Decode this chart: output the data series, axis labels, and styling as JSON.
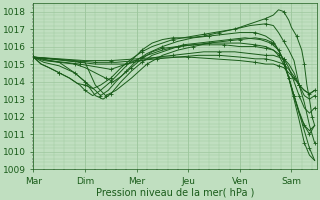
{
  "xlabel": "Pression niveau de la mer( hPa )",
  "ylim": [
    1009,
    1018.5
  ],
  "yticks": [
    1009,
    1010,
    1011,
    1012,
    1013,
    1014,
    1015,
    1016,
    1017,
    1018
  ],
  "day_labels": [
    "Mar",
    "Dim",
    "Mer",
    "Jeu",
    "Ven",
    "Sam"
  ],
  "day_positions": [
    0,
    1,
    2,
    3,
    4,
    5
  ],
  "xlim": [
    0,
    5.5
  ],
  "background_color": "#c0dfc0",
  "grid_color": "#9ec89e",
  "line_color": "#1a5c1a",
  "fig_bg": "#c0dfc0",
  "minor_per_major": 5,
  "lines": [
    [
      0.0,
      1015.4,
      0.15,
      1015.0,
      0.3,
      1014.8,
      0.5,
      1014.5,
      0.7,
      1014.2,
      0.85,
      1013.9,
      1.0,
      1013.8,
      1.15,
      1013.6,
      1.3,
      1013.8,
      1.5,
      1014.2,
      1.7,
      1014.8,
      1.9,
      1015.3,
      2.1,
      1015.7,
      2.3,
      1016.0,
      2.5,
      1016.2,
      2.7,
      1016.4,
      2.9,
      1016.5,
      3.1,
      1016.6,
      3.3,
      1016.7,
      3.5,
      1016.8,
      3.7,
      1016.9,
      3.9,
      1017.0,
      4.1,
      1017.2,
      4.3,
      1017.4,
      4.5,
      1017.6,
      4.65,
      1017.8,
      4.75,
      1018.1,
      4.85,
      1018.0,
      4.95,
      1017.5,
      5.0,
      1017.1,
      5.1,
      1016.6,
      5.15,
      1016.2,
      5.2,
      1015.8,
      5.25,
      1015.0,
      5.3,
      1013.8,
      5.35,
      1013.0,
      5.4,
      1012.0,
      5.45,
      1011.5
    ],
    [
      0.0,
      1015.4,
      0.15,
      1015.0,
      0.3,
      1014.8,
      0.5,
      1014.5,
      0.7,
      1014.2,
      0.9,
      1013.8,
      1.0,
      1013.5,
      1.15,
      1013.2,
      1.3,
      1013.5,
      1.5,
      1014.0,
      1.7,
      1014.6,
      1.9,
      1015.2,
      2.1,
      1015.8,
      2.3,
      1016.2,
      2.5,
      1016.4,
      2.7,
      1016.5,
      3.0,
      1016.5,
      3.3,
      1016.6,
      3.6,
      1016.8,
      3.9,
      1017.0,
      4.2,
      1017.2,
      4.5,
      1017.3,
      4.65,
      1017.2,
      4.75,
      1016.8,
      4.85,
      1016.3,
      4.95,
      1015.8,
      5.05,
      1015.2,
      5.15,
      1013.8,
      5.25,
      1012.8,
      5.35,
      1011.5,
      5.45,
      1010.5
    ],
    [
      0.0,
      1015.4,
      0.2,
      1015.1,
      0.5,
      1014.9,
      0.8,
      1014.5,
      1.0,
      1014.0,
      1.2,
      1013.5,
      1.3,
      1013.2,
      1.45,
      1013.5,
      1.6,
      1014.0,
      1.8,
      1014.6,
      2.0,
      1015.2,
      2.2,
      1015.6,
      2.5,
      1016.0,
      2.8,
      1016.3,
      3.1,
      1016.5,
      3.4,
      1016.6,
      3.7,
      1016.7,
      4.0,
      1016.8,
      4.3,
      1016.8,
      4.5,
      1016.6,
      4.65,
      1016.3,
      4.75,
      1015.8,
      4.85,
      1015.2,
      4.95,
      1014.2,
      5.05,
      1013.2,
      5.15,
      1012.2,
      5.25,
      1011.2,
      5.35,
      1010.2,
      5.45,
      1009.5
    ],
    [
      0.0,
      1015.4,
      0.2,
      1015.2,
      0.5,
      1015.1,
      0.8,
      1015.0,
      1.0,
      1014.8,
      1.2,
      1014.5,
      1.4,
      1014.2,
      1.55,
      1014.0,
      1.7,
      1014.3,
      1.9,
      1014.8,
      2.1,
      1015.3,
      2.3,
      1015.7,
      2.5,
      1015.9,
      2.8,
      1016.0,
      3.1,
      1016.1,
      3.4,
      1016.2,
      3.7,
      1016.2,
      4.0,
      1016.2,
      4.3,
      1016.1,
      4.5,
      1016.0,
      4.65,
      1015.8,
      4.75,
      1015.5,
      4.85,
      1015.0,
      4.95,
      1014.2,
      5.05,
      1013.2,
      5.15,
      1012.3,
      5.25,
      1011.5,
      5.35,
      1011.0,
      5.45,
      1011.5
    ],
    [
      0.0,
      1015.4,
      0.3,
      1015.2,
      0.6,
      1015.1,
      0.9,
      1015.0,
      1.1,
      1014.9,
      1.3,
      1014.8,
      1.5,
      1014.7,
      1.7,
      1014.9,
      1.9,
      1015.1,
      2.1,
      1015.4,
      2.3,
      1015.6,
      2.5,
      1015.8,
      2.8,
      1016.0,
      3.1,
      1016.1,
      3.4,
      1016.1,
      3.7,
      1016.1,
      4.0,
      1016.0,
      4.3,
      1016.0,
      4.5,
      1015.9,
      4.65,
      1015.8,
      4.75,
      1015.6,
      4.85,
      1015.3,
      4.95,
      1014.8,
      5.05,
      1014.0,
      5.15,
      1013.2,
      5.25,
      1012.5,
      5.35,
      1012.2,
      5.45,
      1012.5
    ],
    [
      0.0,
      1015.4,
      0.3,
      1015.3,
      0.6,
      1015.2,
      0.9,
      1015.1,
      1.2,
      1015.0,
      1.5,
      1015.0,
      1.8,
      1015.0,
      2.1,
      1015.2,
      2.4,
      1015.4,
      2.7,
      1015.5,
      3.0,
      1015.6,
      3.3,
      1015.7,
      3.6,
      1015.7,
      3.9,
      1015.7,
      4.2,
      1015.6,
      4.5,
      1015.5,
      4.65,
      1015.5,
      4.75,
      1015.4,
      4.85,
      1015.3,
      4.95,
      1015.0,
      5.05,
      1014.5,
      5.15,
      1013.8,
      5.25,
      1013.2,
      5.35,
      1013.0,
      5.45,
      1013.2
    ],
    [
      0.0,
      1015.4,
      0.4,
      1015.3,
      0.8,
      1015.2,
      1.2,
      1015.1,
      1.6,
      1015.1,
      2.0,
      1015.2,
      2.4,
      1015.3,
      2.8,
      1015.4,
      3.2,
      1015.5,
      3.6,
      1015.5,
      4.0,
      1015.4,
      4.3,
      1015.3,
      4.5,
      1015.3,
      4.65,
      1015.2,
      4.75,
      1015.1,
      4.85,
      1015.0,
      4.95,
      1014.7,
      5.05,
      1014.3,
      5.15,
      1013.8,
      5.25,
      1013.5,
      5.35,
      1013.3,
      5.45,
      1013.5
    ],
    [
      0.0,
      1015.4,
      0.5,
      1015.3,
      1.0,
      1015.2,
      1.5,
      1015.2,
      2.0,
      1015.3,
      2.5,
      1015.4,
      3.0,
      1015.4,
      3.5,
      1015.3,
      4.0,
      1015.2,
      4.3,
      1015.1,
      4.5,
      1015.0,
      4.65,
      1015.0,
      4.75,
      1014.9,
      4.85,
      1014.8,
      4.95,
      1014.5,
      5.05,
      1014.2,
      5.15,
      1013.8,
      5.25,
      1013.5,
      5.35,
      1013.3,
      5.45,
      1013.5
    ],
    [
      0.0,
      1015.4,
      1.0,
      1015.1,
      1.2,
      1013.8,
      1.4,
      1013.2,
      1.6,
      1013.5,
      1.9,
      1014.2,
      2.2,
      1015.0,
      2.5,
      1015.5,
      2.8,
      1015.8,
      3.1,
      1016.0,
      3.4,
      1016.2,
      3.7,
      1016.3,
      4.0,
      1016.4,
      4.3,
      1016.5,
      4.5,
      1016.4,
      4.65,
      1016.2,
      4.75,
      1015.8,
      4.85,
      1015.2,
      4.95,
      1014.2,
      5.05,
      1013.2,
      5.15,
      1012.2,
      5.25,
      1011.5,
      5.35,
      1011.2,
      5.45,
      1011.5
    ],
    [
      0.0,
      1015.4,
      0.5,
      1015.1,
      0.8,
      1014.5,
      1.0,
      1014.0,
      1.2,
      1013.2,
      1.35,
      1013.0,
      1.5,
      1013.3,
      1.7,
      1014.0,
      1.9,
      1014.6,
      2.1,
      1015.1,
      2.3,
      1015.5,
      2.6,
      1015.8,
      2.9,
      1016.1,
      3.2,
      1016.2,
      3.5,
      1016.3,
      3.8,
      1016.4,
      4.1,
      1016.5,
      4.4,
      1016.4,
      4.6,
      1016.2,
      4.75,
      1015.8,
      4.85,
      1015.2,
      4.95,
      1014.2,
      5.05,
      1013.0,
      5.15,
      1011.8,
      5.25,
      1010.5,
      5.35,
      1009.8,
      5.45,
      1009.5
    ]
  ]
}
